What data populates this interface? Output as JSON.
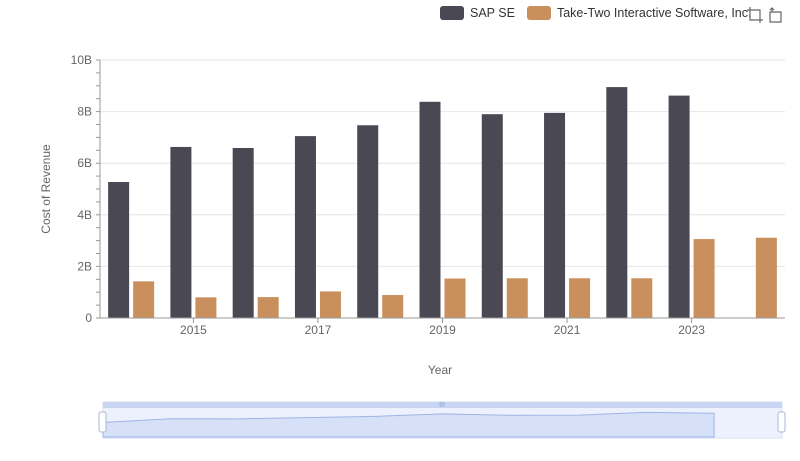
{
  "chart_data": {
    "type": "bar",
    "title": "",
    "xlabel": "Year",
    "ylabel": "Cost of Revenue",
    "x": [
      2014,
      2015,
      2016,
      2017,
      2018,
      2019,
      2020,
      2021,
      2022,
      2023,
      2024
    ],
    "x_tick_labels": [
      "2015",
      "2017",
      "2019",
      "2021",
      "2023"
    ],
    "y_tick_labels": [
      "0",
      "2B",
      "4B",
      "6B",
      "8B",
      "10B"
    ],
    "ylim": [
      0,
      10000000000
    ],
    "grid": true,
    "legend_position": "top-right",
    "series": [
      {
        "name": "SAP SE",
        "color": "#4a4953",
        "values": [
          5270000000,
          6630000000,
          6590000000,
          7050000000,
          7470000000,
          8380000000,
          7900000000,
          7950000000,
          8950000000,
          8620000000,
          null
        ]
      },
      {
        "name": "Take-Two Interactive Software, Inc.",
        "color": "#c98f5c",
        "values": [
          1420000000,
          800000000,
          810000000,
          1030000000,
          890000000,
          1530000000,
          1540000000,
          1540000000,
          1540000000,
          3060000000,
          3110000000
        ]
      }
    ]
  },
  "toolbar": {
    "icons": [
      "zoom-icon",
      "restore-icon"
    ]
  }
}
